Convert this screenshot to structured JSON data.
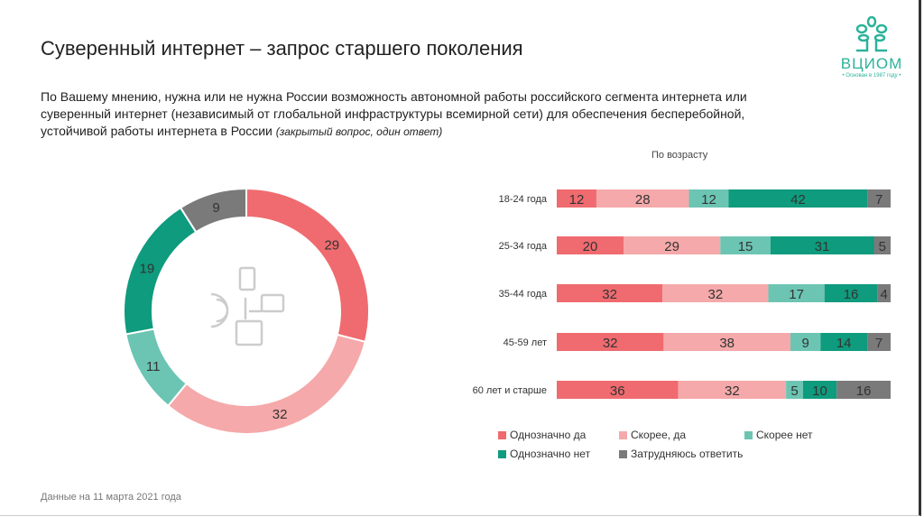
{
  "title": "Суверенный интернет – запрос старшего поколения",
  "question": "По Вашему мнению, нужна или не нужна России возможность автономной работы российского сегмента интернета или суверенный интернет (независимый от глобальной инфраструктуры всемирной сети) для обеспечения бесперебойной, устойчивой работы интернета в России",
  "question_note": "(закрытый вопрос, один ответ)",
  "footnote": "Данные на 11 марта 2021 года",
  "logo": {
    "name": "ВЦИОМ",
    "sub": "• Основан в 1987 году •"
  },
  "colors": {
    "Однозначно да": "#ef6b6f",
    "Скорее, да": "#f5a9aa",
    "Скорее нет": "#6cc5b3",
    "Однозначно нет": "#0f9b7d",
    "Затрудняюсь ответить": "#7a7a7a"
  },
  "chart_data": [
    {
      "type": "pie",
      "donut": true,
      "categories": [
        "Однозначно да",
        "Скорее, да",
        "Скорее нет",
        "Однозначно нет",
        "Затрудняюсь ответить"
      ],
      "values": [
        29,
        32,
        11,
        19,
        9
      ]
    },
    {
      "type": "bar",
      "stacked": true,
      "orientation": "horizontal",
      "subtitle": "По возрасту",
      "categories": [
        "18-24 года",
        "25-34 года",
        "35-44 года",
        "45-59 лет",
        "60 лет и старше"
      ],
      "series": [
        {
          "name": "Однозначно да",
          "values": [
            12,
            20,
            32,
            32,
            36
          ]
        },
        {
          "name": "Скорее, да",
          "values": [
            28,
            29,
            32,
            38,
            32
          ]
        },
        {
          "name": "Скорее нет",
          "values": [
            12,
            15,
            17,
            9,
            5
          ]
        },
        {
          "name": "Однозначно нет",
          "values": [
            42,
            31,
            16,
            14,
            10
          ]
        },
        {
          "name": "Затрудняюсь ответить",
          "values": [
            7,
            5,
            4,
            7,
            16
          ]
        }
      ],
      "legend": "bottom"
    }
  ]
}
